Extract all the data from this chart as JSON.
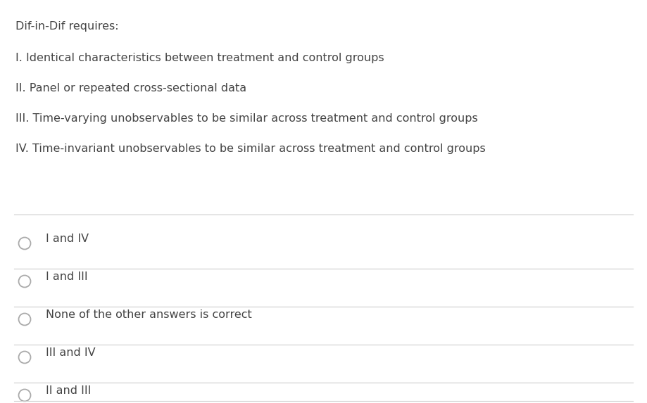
{
  "background_color": "#ffffff",
  "question_text": "Dif-in-Dif requires:",
  "items": [
    "I. Identical characteristics between treatment and control groups",
    "II. Panel or repeated cross-sectional data",
    "III. Time-varying unobservables to be similar across treatment and control groups",
    "IV. Time-invariant unobservables to be similar across treatment and control groups"
  ],
  "options": [
    "I and IV",
    "I and III",
    "None of the other answers is correct",
    "III and IV",
    "II and III"
  ],
  "text_color": "#444444",
  "line_color": "#cccccc",
  "circle_color": "#aaaaaa",
  "question_fontsize": 11.5,
  "item_fontsize": 11.5,
  "option_fontsize": 11.5,
  "fig_width": 9.19,
  "fig_height": 5.73,
  "dpi": 100
}
